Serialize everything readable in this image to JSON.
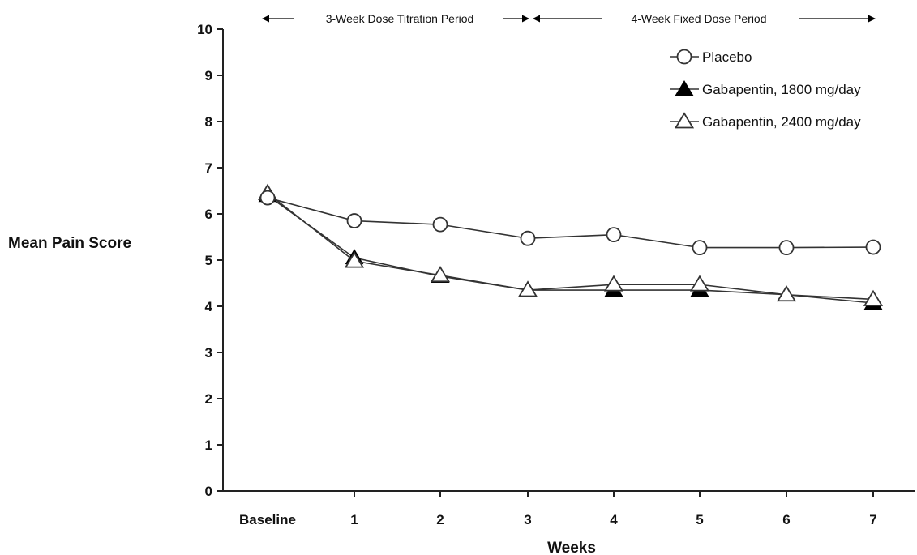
{
  "chart_data": {
    "type": "line",
    "xlabel": "Weeks",
    "ylabel": "Mean Pain Score",
    "categories": [
      "Baseline",
      "1",
      "2",
      "3",
      "4",
      "5",
      "6",
      "7"
    ],
    "ylim": [
      0,
      10
    ],
    "yticks": [
      0,
      1,
      2,
      3,
      4,
      5,
      6,
      7,
      8,
      9,
      10
    ],
    "grid": false,
    "legend_position": "top-right",
    "periods": [
      {
        "label": "3-Week Dose Titration Period",
        "from": "Baseline",
        "to": "3"
      },
      {
        "label": "4-Week Fixed Dose Period",
        "from": "3",
        "to": "7"
      }
    ],
    "series": [
      {
        "name": "Placebo",
        "marker": "circle-open",
        "values": [
          6.35,
          5.85,
          5.77,
          5.47,
          5.55,
          5.27,
          5.27,
          5.28
        ]
      },
      {
        "name": "Gabapentin, 1800 mg/day",
        "marker": "triangle-filled",
        "values": [
          6.4,
          5.05,
          4.65,
          4.35,
          4.35,
          4.35,
          4.25,
          4.07
        ]
      },
      {
        "name": "Gabapentin, 2400 mg/day",
        "marker": "triangle-open",
        "values": [
          6.45,
          4.98,
          4.67,
          4.35,
          4.47,
          4.47,
          4.25,
          4.15
        ]
      }
    ],
    "colors": {
      "line": "#333333",
      "marker_fill": "#ffffff",
      "marker_solid": "#000000"
    }
  }
}
